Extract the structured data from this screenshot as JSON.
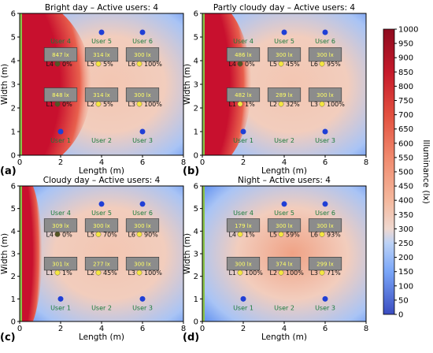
{
  "chart_data": {
    "type": "heatmap",
    "axes": {
      "xlabel": "Length (m)",
      "ylabel": "Width (m)",
      "xlim": [
        0,
        8
      ],
      "ylim": [
        0,
        6
      ],
      "xticks": [
        0,
        2,
        4,
        6,
        8
      ],
      "yticks": [
        0,
        1,
        2,
        3,
        4,
        5,
        6
      ]
    },
    "colorbar": {
      "label": "Illuminance (lx)",
      "min": 0,
      "max": 1000,
      "ticks": [
        0,
        50,
        100,
        150,
        200,
        250,
        300,
        350,
        400,
        450,
        500,
        550,
        600,
        650,
        700,
        750,
        800,
        850,
        900,
        950,
        1000
      ]
    },
    "panels": [
      {
        "tag": "(a)",
        "title": "Bright day – Active users: 4",
        "window_reach_x": 3.5,
        "luminaires": [
          {
            "id": "L1",
            "x": 2,
            "y": 2.3,
            "lux": "848 lx",
            "dim": "0%"
          },
          {
            "id": "L2",
            "x": 4,
            "y": 2.3,
            "lux": "314 lx",
            "dim": "5%"
          },
          {
            "id": "L3",
            "x": 6,
            "y": 2.3,
            "lux": "300 lx",
            "dim": "100%"
          },
          {
            "id": "L4",
            "x": 2,
            "y": 4.0,
            "lux": "847 lx",
            "dim": "0%"
          },
          {
            "id": "L5",
            "x": 4,
            "y": 4.0,
            "lux": "314 lx",
            "dim": "5%"
          },
          {
            "id": "L6",
            "x": 6,
            "y": 4.0,
            "lux": "300 lx",
            "dim": "100%"
          }
        ],
        "users": [
          {
            "name": "User 1",
            "x": 2,
            "y": 1.0,
            "active": true
          },
          {
            "name": "User 2",
            "x": 4,
            "y": 1.0,
            "active": false
          },
          {
            "name": "User 3",
            "x": 6,
            "y": 1.0,
            "active": true
          },
          {
            "name": "User 4",
            "x": 2,
            "y": 5.2,
            "active": false
          },
          {
            "name": "User 5",
            "x": 4,
            "y": 5.2,
            "active": true
          },
          {
            "name": "User 6",
            "x": 6,
            "y": 5.2,
            "active": true
          }
        ]
      },
      {
        "tag": "(b)",
        "title": "Partly cloudy day – Active users: 4",
        "window_reach_x": 2.4,
        "luminaires": [
          {
            "id": "L1",
            "x": 2,
            "y": 2.3,
            "lux": "482 lx",
            "dim": "1%"
          },
          {
            "id": "L2",
            "x": 4,
            "y": 2.3,
            "lux": "289 lx",
            "dim": "32%"
          },
          {
            "id": "L3",
            "x": 6,
            "y": 2.3,
            "lux": "300 lx",
            "dim": "100%"
          },
          {
            "id": "L4",
            "x": 2,
            "y": 4.0,
            "lux": "486 lx",
            "dim": "0%"
          },
          {
            "id": "L5",
            "x": 4,
            "y": 4.0,
            "lux": "300 lx",
            "dim": "45%"
          },
          {
            "id": "L6",
            "x": 6,
            "y": 4.0,
            "lux": "300 lx",
            "dim": "95%"
          }
        ],
        "users": [
          {
            "name": "User 1",
            "x": 2,
            "y": 1.0,
            "active": true
          },
          {
            "name": "User 2",
            "x": 4,
            "y": 1.0,
            "active": false
          },
          {
            "name": "User 3",
            "x": 6,
            "y": 1.0,
            "active": true
          },
          {
            "name": "User 4",
            "x": 2,
            "y": 5.2,
            "active": false
          },
          {
            "name": "User 5",
            "x": 4,
            "y": 5.2,
            "active": true
          },
          {
            "name": "User 6",
            "x": 6,
            "y": 5.2,
            "active": true
          }
        ]
      },
      {
        "tag": "(c)",
        "title": "Cloudy day – Active users: 4",
        "window_reach_x": 1.1,
        "luminaires": [
          {
            "id": "L1",
            "x": 2,
            "y": 2.3,
            "lux": "301 lx",
            "dim": "1%"
          },
          {
            "id": "L2",
            "x": 4,
            "y": 2.3,
            "lux": "277 lx",
            "dim": "45%"
          },
          {
            "id": "L3",
            "x": 6,
            "y": 2.3,
            "lux": "300 lx",
            "dim": "100%"
          },
          {
            "id": "L4",
            "x": 2,
            "y": 4.0,
            "lux": "309 lx",
            "dim": "0%"
          },
          {
            "id": "L5",
            "x": 4,
            "y": 4.0,
            "lux": "300 lx",
            "dim": "70%"
          },
          {
            "id": "L6",
            "x": 6,
            "y": 4.0,
            "lux": "300 lx",
            "dim": "90%"
          }
        ],
        "users": [
          {
            "name": "User 1",
            "x": 2,
            "y": 1.0,
            "active": true
          },
          {
            "name": "User 2",
            "x": 4,
            "y": 1.0,
            "active": false
          },
          {
            "name": "User 3",
            "x": 6,
            "y": 1.0,
            "active": true
          },
          {
            "name": "User 4",
            "x": 2,
            "y": 5.2,
            "active": false
          },
          {
            "name": "User 5",
            "x": 4,
            "y": 5.2,
            "active": true
          },
          {
            "name": "User 6",
            "x": 6,
            "y": 5.2,
            "active": true
          }
        ]
      },
      {
        "tag": "(d)",
        "title": "Night – Active users: 4",
        "window_reach_x": 0,
        "luminaires": [
          {
            "id": "L1",
            "x": 2,
            "y": 2.3,
            "lux": "300 lx",
            "dim": "100%"
          },
          {
            "id": "L2",
            "x": 4,
            "y": 2.3,
            "lux": "374 lx",
            "dim": "100%"
          },
          {
            "id": "L3",
            "x": 6,
            "y": 2.3,
            "lux": "299 lx",
            "dim": "71%"
          },
          {
            "id": "L4",
            "x": 2,
            "y": 4.0,
            "lux": "179 lx",
            "dim": "1%"
          },
          {
            "id": "L5",
            "x": 4,
            "y": 4.0,
            "lux": "300 lx",
            "dim": "59%"
          },
          {
            "id": "L6",
            "x": 6,
            "y": 4.0,
            "lux": "300 lx",
            "dim": "93%"
          }
        ],
        "users": [
          {
            "name": "User 1",
            "x": 2,
            "y": 1.0,
            "active": true
          },
          {
            "name": "User 2",
            "x": 4,
            "y": 1.0,
            "active": false
          },
          {
            "name": "User 3",
            "x": 6,
            "y": 1.0,
            "active": true
          },
          {
            "name": "User 4",
            "x": 2,
            "y": 5.2,
            "active": false
          },
          {
            "name": "User 5",
            "x": 4,
            "y": 5.2,
            "active": true
          },
          {
            "name": "User 6",
            "x": 6,
            "y": 5.2,
            "active": true
          }
        ]
      }
    ]
  },
  "colors": {
    "window_red": "#c8102e",
    "room_blue": "#5a8cf0",
    "room_mid": "#f2cdbd",
    "desk_fill": "#8c8c8c",
    "desk_text": "#ffff66",
    "user_active": "#1f3fd6",
    "user_text": "#1a7a3a",
    "lamp_on": "#f5e642",
    "lamp_off": "#555522"
  }
}
